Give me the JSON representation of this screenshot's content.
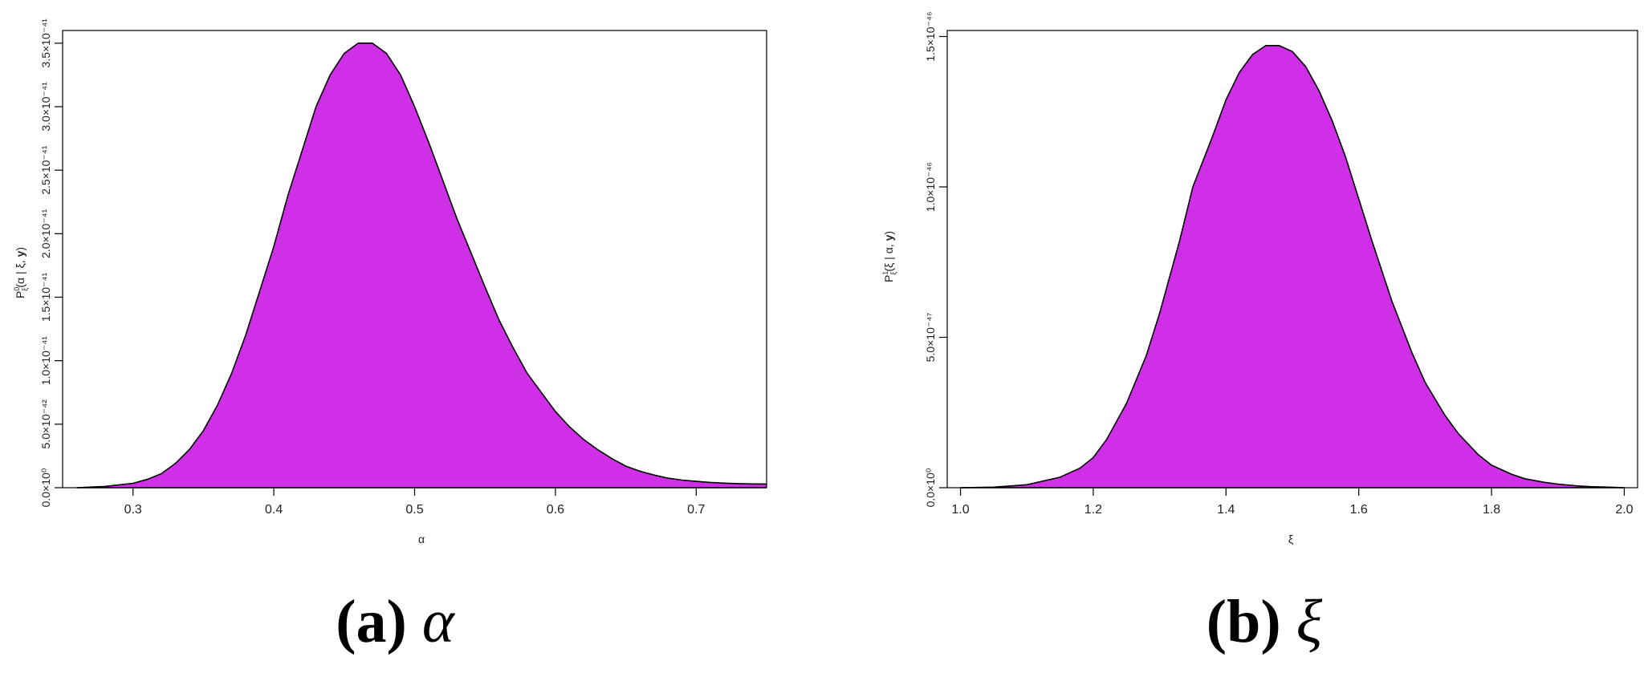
{
  "chart_data": [
    {
      "type": "area",
      "xlabel": "α",
      "ylabel": "P_ξ^0(α | ξ, y)",
      "xlim": [
        0.25,
        0.75
      ],
      "ylim": [
        0,
        3.6e-41
      ],
      "x_ticks": [
        0.3,
        0.4,
        0.5,
        0.6,
        0.7
      ],
      "x_tick_labels": [
        "0.3",
        "0.4",
        "0.5",
        "0.6",
        "0.7"
      ],
      "y_ticks": [
        0,
        5e-42,
        1e-41,
        1.5e-41,
        2e-41,
        2.5e-41,
        3e-41,
        3.5e-41
      ],
      "y_tick_labels": [
        "0.0×10⁰",
        "5.0×10⁻⁴²",
        "1.0×10⁻⁴¹",
        "1.5×10⁻⁴¹",
        "2.0×10⁻⁴¹",
        "2.5×10⁻⁴¹",
        "3.0×10⁻⁴¹",
        "3.5×10⁻⁴¹"
      ],
      "fill_color": "#cf2fe6",
      "line_color": "#000000",
      "x": [
        0.26,
        0.28,
        0.3,
        0.31,
        0.32,
        0.33,
        0.34,
        0.35,
        0.36,
        0.37,
        0.38,
        0.39,
        0.4,
        0.41,
        0.42,
        0.43,
        0.44,
        0.45,
        0.46,
        0.47,
        0.48,
        0.49,
        0.5,
        0.51,
        0.52,
        0.53,
        0.54,
        0.55,
        0.56,
        0.57,
        0.58,
        0.59,
        0.6,
        0.61,
        0.62,
        0.63,
        0.64,
        0.65,
        0.66,
        0.67,
        0.68,
        0.69,
        0.7,
        0.71,
        0.72,
        0.73,
        0.74,
        0.75
      ],
      "values": [
        0,
        1e-43,
        3.5e-43,
        6.5e-43,
        1.1e-42,
        1.9e-42,
        3e-42,
        4.5e-42,
        6.5e-42,
        9e-42,
        1.2e-41,
        1.55e-41,
        1.9e-41,
        2.3e-41,
        2.65e-41,
        3e-41,
        3.25e-41,
        3.42e-41,
        3.5e-41,
        3.5e-41,
        3.42e-41,
        3.25e-41,
        3e-41,
        2.72e-41,
        2.42e-41,
        2.12e-41,
        1.85e-41,
        1.58e-41,
        1.32e-41,
        1.1e-41,
        9e-42,
        7.5e-42,
        6e-42,
        4.8e-42,
        3.8e-42,
        3e-42,
        2.3e-42,
        1.7e-42,
        1.3e-42,
        1e-42,
        7.5e-43,
        6e-43,
        5e-43,
        4.2e-43,
        3.6e-43,
        3.2e-43,
        3e-43,
        2.9e-43
      ]
    },
    {
      "type": "area",
      "xlabel": "ξ",
      "ylabel": "P_ξ^1(ξ | α, y)",
      "xlim": [
        0.98,
        2.02
      ],
      "ylim": [
        0,
        1.52e-46
      ],
      "x_ticks": [
        1.0,
        1.2,
        1.4,
        1.6,
        1.8,
        2.0
      ],
      "x_tick_labels": [
        "1.0",
        "1.2",
        "1.4",
        "1.6",
        "1.8",
        "2.0"
      ],
      "y_ticks": [
        0,
        5e-47,
        1e-46,
        1.5e-46
      ],
      "y_tick_labels": [
        "0.0×10⁰",
        "5.0×10⁻⁴⁷",
        "1.0×10⁻⁴⁶",
        "1.5×10⁻⁴⁶"
      ],
      "fill_color": "#cf2fe6",
      "line_color": "#000000",
      "x": [
        1.0,
        1.05,
        1.1,
        1.15,
        1.18,
        1.2,
        1.22,
        1.25,
        1.28,
        1.3,
        1.33,
        1.35,
        1.38,
        1.4,
        1.42,
        1.44,
        1.46,
        1.48,
        1.5,
        1.52,
        1.54,
        1.56,
        1.58,
        1.6,
        1.62,
        1.65,
        1.68,
        1.7,
        1.73,
        1.75,
        1.78,
        1.8,
        1.83,
        1.85,
        1.88,
        1.9,
        1.93,
        1.95,
        1.98,
        2.0
      ],
      "values": [
        0,
        2e-49,
        1e-48,
        3.5e-48,
        6.5e-48,
        1e-47,
        1.6e-47,
        2.8e-47,
        4.4e-47,
        5.8e-47,
        8.2e-47,
        1e-46,
        1.17e-46,
        1.29e-46,
        1.38e-46,
        1.44e-46,
        1.47e-46,
        1.47e-46,
        1.45e-46,
        1.4e-46,
        1.32e-46,
        1.22e-46,
        1.1e-46,
        9.6e-47,
        8.2e-47,
        6.2e-47,
        4.5e-47,
        3.5e-47,
        2.4e-47,
        1.8e-47,
        1.1e-47,
        7.5e-48,
        4.5e-48,
        3e-48,
        1.8e-48,
        1.2e-48,
        6e-49,
        3.5e-49,
        1.5e-49,
        0
      ]
    }
  ],
  "captions": [
    {
      "label": "(a)",
      "symbol": "α"
    },
    {
      "label": "(b)",
      "symbol": "ξ"
    }
  ]
}
